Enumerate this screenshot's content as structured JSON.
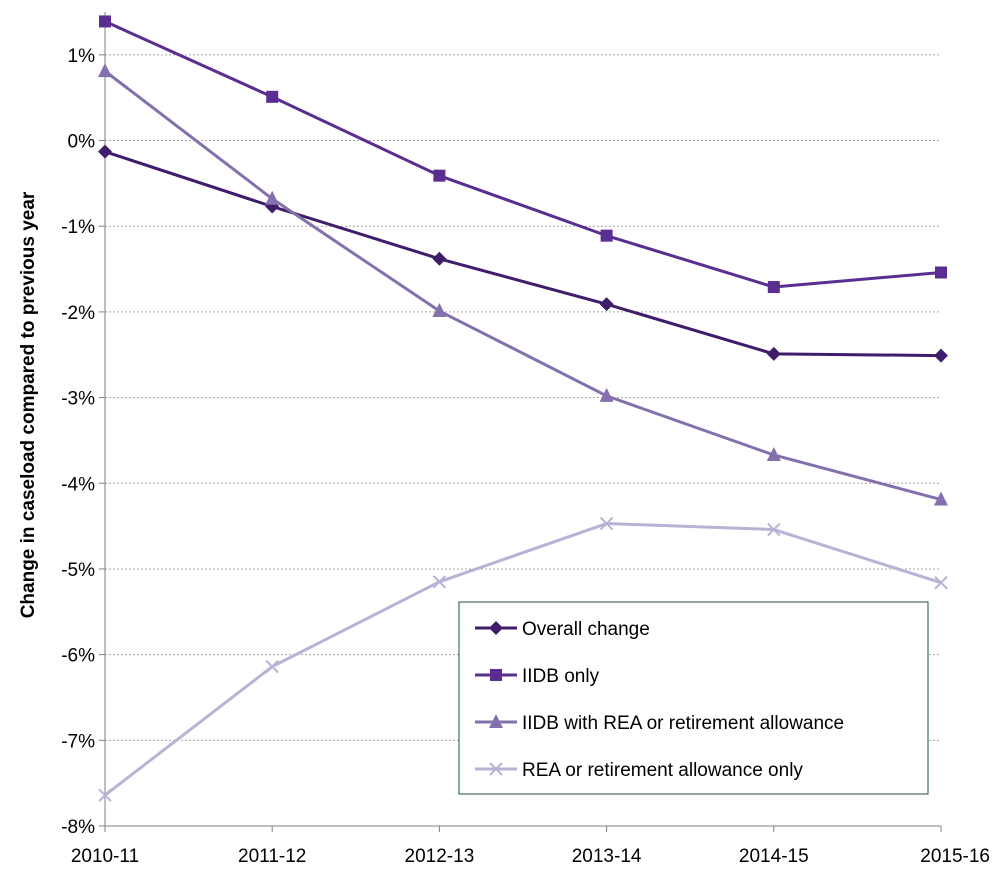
{
  "chart_data": {
    "type": "line",
    "title": "",
    "xlabel": "",
    "ylabel": "Change in caseload compared to previous year",
    "categories": [
      "2010-11",
      "2011-12",
      "2012-13",
      "2013-14",
      "2014-15",
      "2015-16"
    ],
    "ylim": [
      -8,
      1.5
    ],
    "yticks": [
      1,
      0,
      -1,
      -2,
      -3,
      -4,
      -5,
      -6,
      -7,
      -8
    ],
    "ytick_labels": [
      "1%",
      "0%",
      "-1%",
      "-2%",
      "-3%",
      "-4%",
      "-5%",
      "-6%",
      "-7%",
      "-8%"
    ],
    "grid": true,
    "legend_position": "bottom-right",
    "series": [
      {
        "name": "Overall change",
        "marker": "diamond",
        "color": "#3f1d6b",
        "values": [
          -0.13,
          -0.77,
          -1.38,
          -1.91,
          -2.49,
          -2.51
        ]
      },
      {
        "name": "IIDB only",
        "marker": "square",
        "color": "#5a2d91",
        "values": [
          1.39,
          0.51,
          -0.41,
          -1.11,
          -1.71,
          -1.54
        ]
      },
      {
        "name": "IIDB with REA or retirement allowance",
        "marker": "triangle",
        "color": "#8470ad",
        "values": [
          0.81,
          -0.68,
          -1.99,
          -2.98,
          -3.67,
          -4.19
        ]
      },
      {
        "name": "REA or retirement allowance only",
        "marker": "x",
        "color": "#b9b2d4",
        "values": [
          -7.64,
          -6.14,
          -5.15,
          -4.47,
          -4.54,
          -5.16
        ]
      }
    ]
  }
}
